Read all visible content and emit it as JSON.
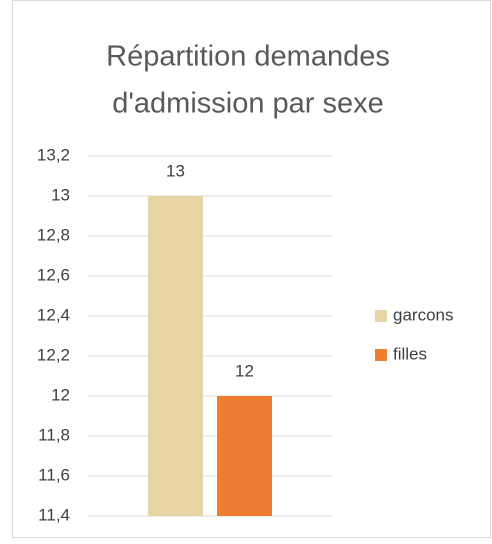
{
  "chart_data": {
    "type": "bar",
    "title": [
      "Répartition demandes",
      "d'admission par sexe"
    ],
    "categories": [
      null
    ],
    "series": [
      {
        "name": "garcons",
        "color": "#e6d4a2",
        "values": [
          13
        ]
      },
      {
        "name": "filles",
        "color": "#ed7d31",
        "values": [
          12
        ]
      }
    ],
    "ylim": [
      11.4,
      13.2
    ],
    "yticks": [
      {
        "value": 11.4,
        "label": "11,4"
      },
      {
        "value": 11.6,
        "label": "11,6"
      },
      {
        "value": 11.8,
        "label": "11,8"
      },
      12,
      {
        "value": 12.2,
        "label": "12,2"
      },
      {
        "value": 12.4,
        "label": "12,4"
      },
      {
        "value": 12.6,
        "label": "12,6"
      },
      {
        "value": 12.8,
        "label": "12,8"
      },
      13,
      {
        "value": 13.2,
        "label": "13,2"
      }
    ],
    "grid": true,
    "legend": "right"
  }
}
